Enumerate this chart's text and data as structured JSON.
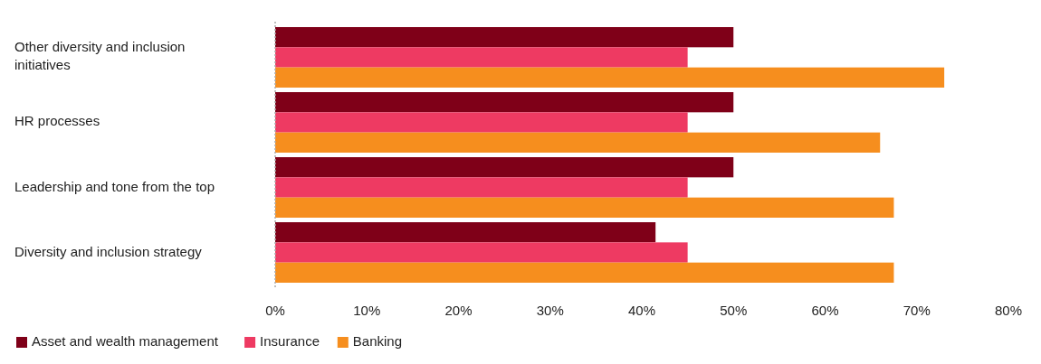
{
  "chart_data": {
    "type": "bar",
    "orientation": "horizontal",
    "categories": [
      "Other diversity and inclusion initiatives",
      "HR processes",
      "Leadership and tone from the top",
      "Diversity and inclusion strategy"
    ],
    "series": [
      {
        "name": "Asset and wealth management",
        "color": "#7f0018",
        "values": [
          50,
          50,
          50,
          41.5
        ]
      },
      {
        "name": "Insurance",
        "color": "#ee3a62",
        "values": [
          45,
          45,
          45,
          45
        ]
      },
      {
        "name": "Banking",
        "color": "#f68e1e",
        "values": [
          73,
          66,
          67.5,
          67.5
        ]
      }
    ],
    "xlim": [
      0,
      80
    ],
    "xticks": [
      {
        "value": 0,
        "label": "0%"
      },
      {
        "value": 10,
        "label": "10%"
      },
      {
        "value": 20,
        "label": "20%"
      },
      {
        "value": 30,
        "label": "30%"
      },
      {
        "value": 40,
        "label": "40%"
      },
      {
        "value": 50,
        "label": "50%"
      },
      {
        "value": 60,
        "label": "60%"
      },
      {
        "value": 70,
        "label": "70%"
      },
      {
        "value": 80,
        "label": "80%"
      }
    ],
    "grid": false,
    "legend": "bottom left"
  }
}
